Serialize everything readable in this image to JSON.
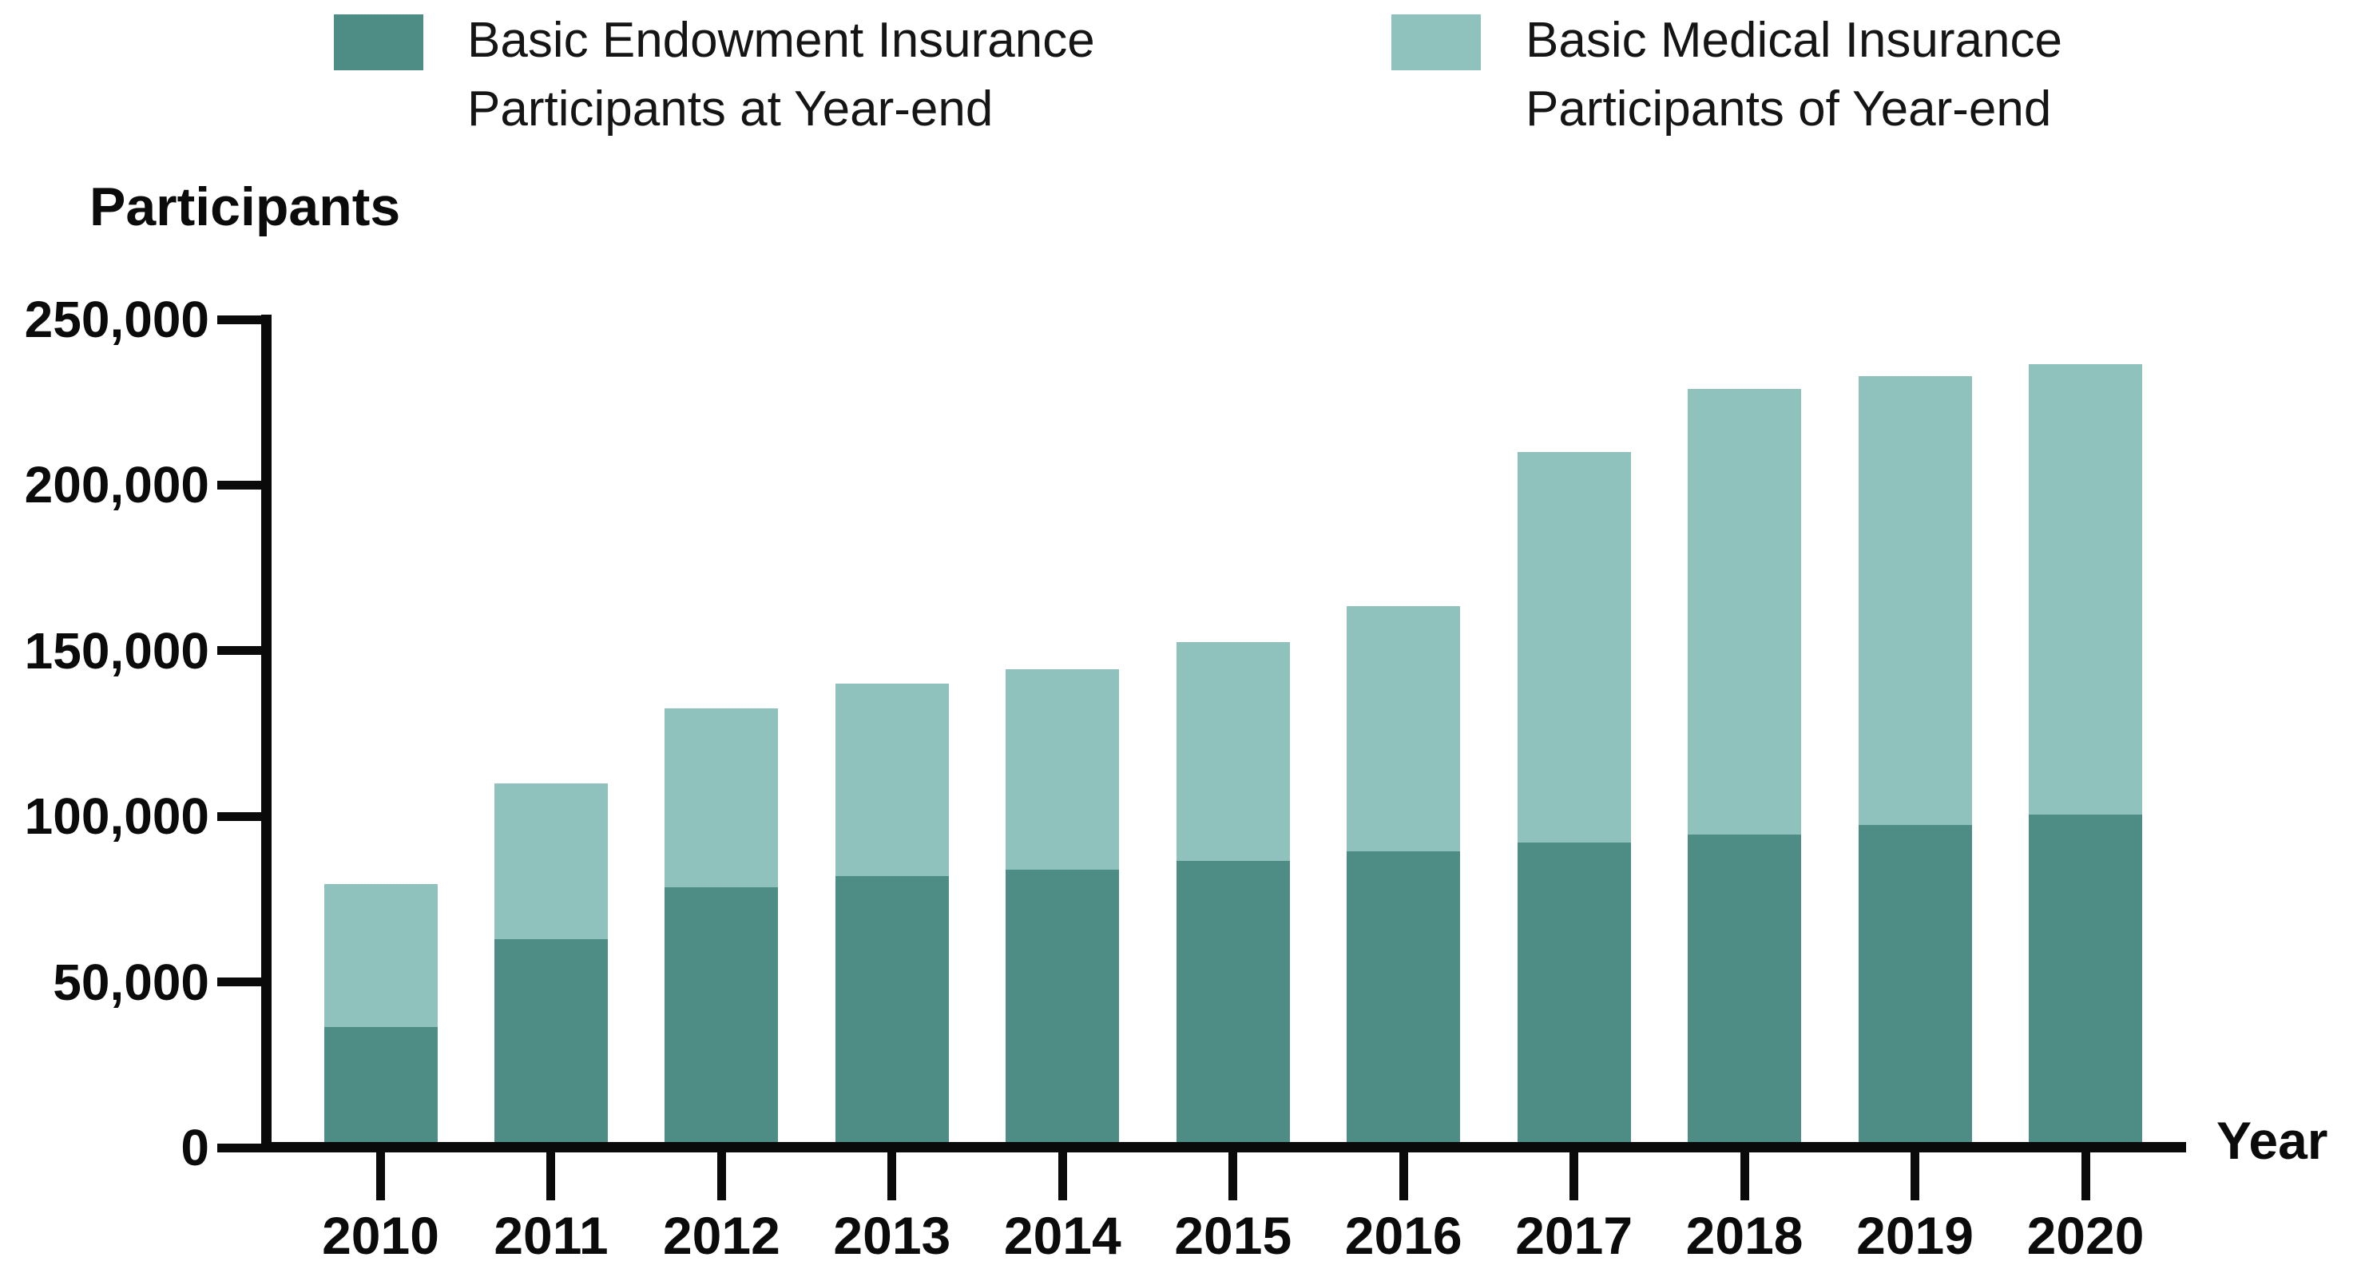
{
  "legend": {
    "items": [
      {
        "line1": "Basic Endowment Insurance",
        "line2": "Participants at Year-end",
        "color": "#4E8D86"
      },
      {
        "line1": "Basic Medical Insurance",
        "line2": "Participants of Year-end",
        "color": "#8FC2BD"
      }
    ]
  },
  "chart_data": {
    "type": "bar",
    "stacked": true,
    "title": "",
    "ylabel": "Participants",
    "xlabel": "Year",
    "categories": [
      "2010",
      "2011",
      "2012",
      "2013",
      "2014",
      "2015",
      "2016",
      "2017",
      "2018",
      "2019",
      "2020"
    ],
    "series": [
      {
        "name": "Basic Endowment Insurance Participants at Year-end",
        "color": "#4E8D86",
        "values": [
          36500,
          63000,
          78500,
          82000,
          84000,
          86500,
          89500,
          92000,
          94500,
          97500,
          100500
        ]
      },
      {
        "name": "Basic Medical Insurance Participants of Year-end",
        "color": "#8FC2BD",
        "values": [
          43000,
          47000,
          54000,
          58000,
          60500,
          66000,
          74000,
          118000,
          134500,
          135500,
          136000
        ]
      }
    ],
    "stacked_totals": [
      79500,
      110000,
      132500,
      140000,
      144500,
      152500,
      163500,
      210000,
      229000,
      233000,
      236500
    ],
    "ylim": [
      0,
      250000
    ],
    "ytick_step": 50000,
    "ytick_labels": [
      "0",
      "50,000",
      "100,000",
      "150,000",
      "200,000",
      "250,000"
    ],
    "grid": false,
    "legend_position": "top"
  }
}
